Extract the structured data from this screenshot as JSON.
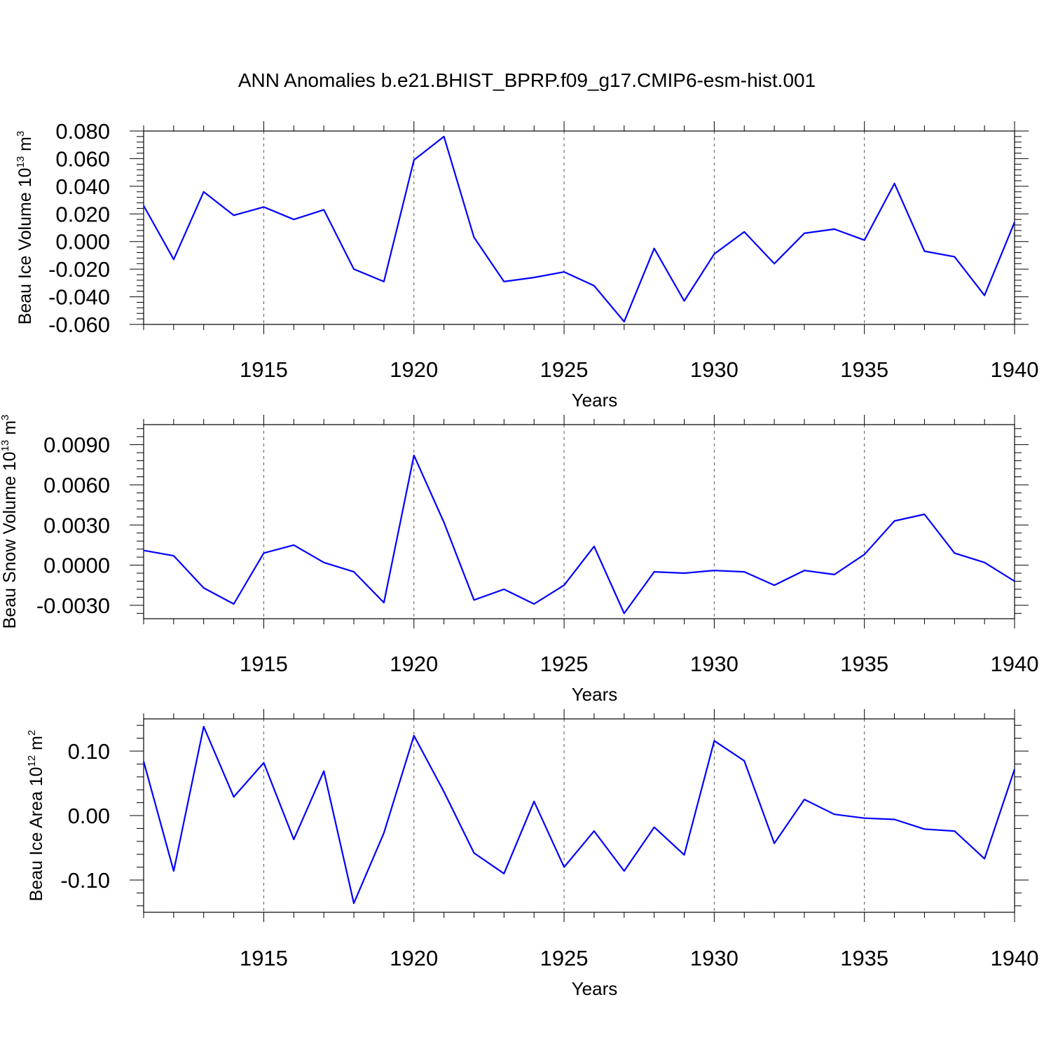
{
  "figure": {
    "title": "ANN Anomalies b.e21.BHIST_BPRP.f09_g17.CMIP6-esm-hist.001"
  },
  "chart_data": [
    {
      "type": "line",
      "title": "",
      "xlabel": "Years",
      "ylabel": "Beau Ice Volume 10",
      "ylabel_exponent": "13",
      "ylabel_unit": " m",
      "ylabel_unit_exponent": "3",
      "xlim": [
        1911,
        1940
      ],
      "ylim": [
        -0.06,
        0.08
      ],
      "xticks": [
        1915,
        1920,
        1925,
        1930,
        1935,
        1940
      ],
      "xtick_labels": [
        "1915",
        "1920",
        "1925",
        "1930",
        "1935",
        "1940"
      ],
      "yticks": [
        0.08,
        0.06,
        0.04,
        0.02,
        0.0,
        -0.02,
        -0.04,
        -0.06
      ],
      "ytick_labels": [
        "0.080",
        "0.060",
        "0.040",
        "0.020",
        "0.000",
        "-0.020",
        "-0.040",
        "-0.060"
      ],
      "grid": "vertical dashed at major x ticks",
      "color": "#0000ff",
      "x": [
        1911,
        1912,
        1913,
        1914,
        1915,
        1916,
        1917,
        1918,
        1919,
        1920,
        1921,
        1922,
        1923,
        1924,
        1925,
        1926,
        1927,
        1928,
        1929,
        1930,
        1931,
        1932,
        1933,
        1934,
        1935,
        1936,
        1937,
        1938,
        1939,
        1940
      ],
      "y": [
        0.026,
        -0.013,
        0.036,
        0.019,
        0.025,
        0.016,
        0.023,
        -0.02,
        -0.029,
        0.059,
        0.076,
        0.003,
        -0.029,
        -0.026,
        -0.022,
        -0.032,
        -0.058,
        -0.005,
        -0.043,
        -0.009,
        0.007,
        -0.016,
        0.006,
        0.009,
        0.001,
        0.042,
        -0.007,
        -0.011,
        -0.039,
        0.014
      ]
    },
    {
      "type": "line",
      "title": "",
      "xlabel": "Years",
      "ylabel": "Beau Snow Volume 10",
      "ylabel_exponent": "13",
      "ylabel_unit": " m",
      "ylabel_unit_exponent": "3",
      "xlim": [
        1911,
        1940
      ],
      "ylim": [
        -0.004,
        0.0105
      ],
      "xticks": [
        1915,
        1920,
        1925,
        1930,
        1935,
        1940
      ],
      "xtick_labels": [
        "1915",
        "1920",
        "1925",
        "1930",
        "1935",
        "1940"
      ],
      "yticks": [
        0.009,
        0.006,
        0.003,
        0.0,
        -0.003
      ],
      "ytick_labels": [
        "0.0090",
        "0.0060",
        "0.0030",
        "0.0000",
        "-0.0030"
      ],
      "grid": "vertical dashed at major x ticks",
      "color": "#0000ff",
      "x": [
        1911,
        1912,
        1913,
        1914,
        1915,
        1916,
        1917,
        1918,
        1919,
        1920,
        1921,
        1922,
        1923,
        1924,
        1925,
        1926,
        1927,
        1928,
        1929,
        1930,
        1931,
        1932,
        1933,
        1934,
        1935,
        1936,
        1937,
        1938,
        1939,
        1940
      ],
      "y": [
        0.0011,
        0.0007,
        -0.0017,
        -0.0029,
        0.0009,
        0.0015,
        0.0002,
        -0.0005,
        -0.0028,
        0.0082,
        0.0032,
        -0.0026,
        -0.0018,
        -0.0029,
        -0.0015,
        0.0014,
        -0.0036,
        -0.0005,
        -0.0006,
        -0.0004,
        -0.0005,
        -0.0015,
        -0.0004,
        -0.0007,
        0.0008,
        0.0033,
        0.0038,
        0.0009,
        0.0002,
        -0.0012
      ]
    },
    {
      "type": "line",
      "title": "",
      "xlabel": "Years",
      "ylabel": "Beau Ice Area 10",
      "ylabel_exponent": "12",
      "ylabel_unit": " m",
      "ylabel_unit_exponent": "2",
      "xlim": [
        1911,
        1940
      ],
      "ylim": [
        -0.15,
        0.15
      ],
      "xticks": [
        1915,
        1920,
        1925,
        1930,
        1935,
        1940
      ],
      "xtick_labels": [
        "1915",
        "1920",
        "1925",
        "1930",
        "1935",
        "1940"
      ],
      "yticks": [
        0.1,
        0.0,
        -0.1
      ],
      "ytick_labels": [
        "0.10",
        "0.00",
        "-0.10"
      ],
      "grid": "vertical dashed at major x ticks",
      "color": "#0000ff",
      "x": [
        1911,
        1912,
        1913,
        1914,
        1915,
        1916,
        1917,
        1918,
        1919,
        1920,
        1921,
        1922,
        1923,
        1924,
        1925,
        1926,
        1927,
        1928,
        1929,
        1930,
        1931,
        1932,
        1933,
        1934,
        1935,
        1936,
        1937,
        1938,
        1939,
        1940
      ],
      "y": [
        0.084,
        -0.086,
        0.138,
        0.029,
        0.082,
        -0.037,
        0.069,
        -0.136,
        -0.027,
        0.124,
        0.037,
        -0.058,
        -0.09,
        0.022,
        -0.08,
        -0.024,
        -0.086,
        -0.018,
        -0.061,
        0.116,
        0.085,
        -0.043,
        0.025,
        0.002,
        -0.004,
        -0.006,
        -0.021,
        -0.024,
        -0.067,
        0.072
      ]
    }
  ]
}
